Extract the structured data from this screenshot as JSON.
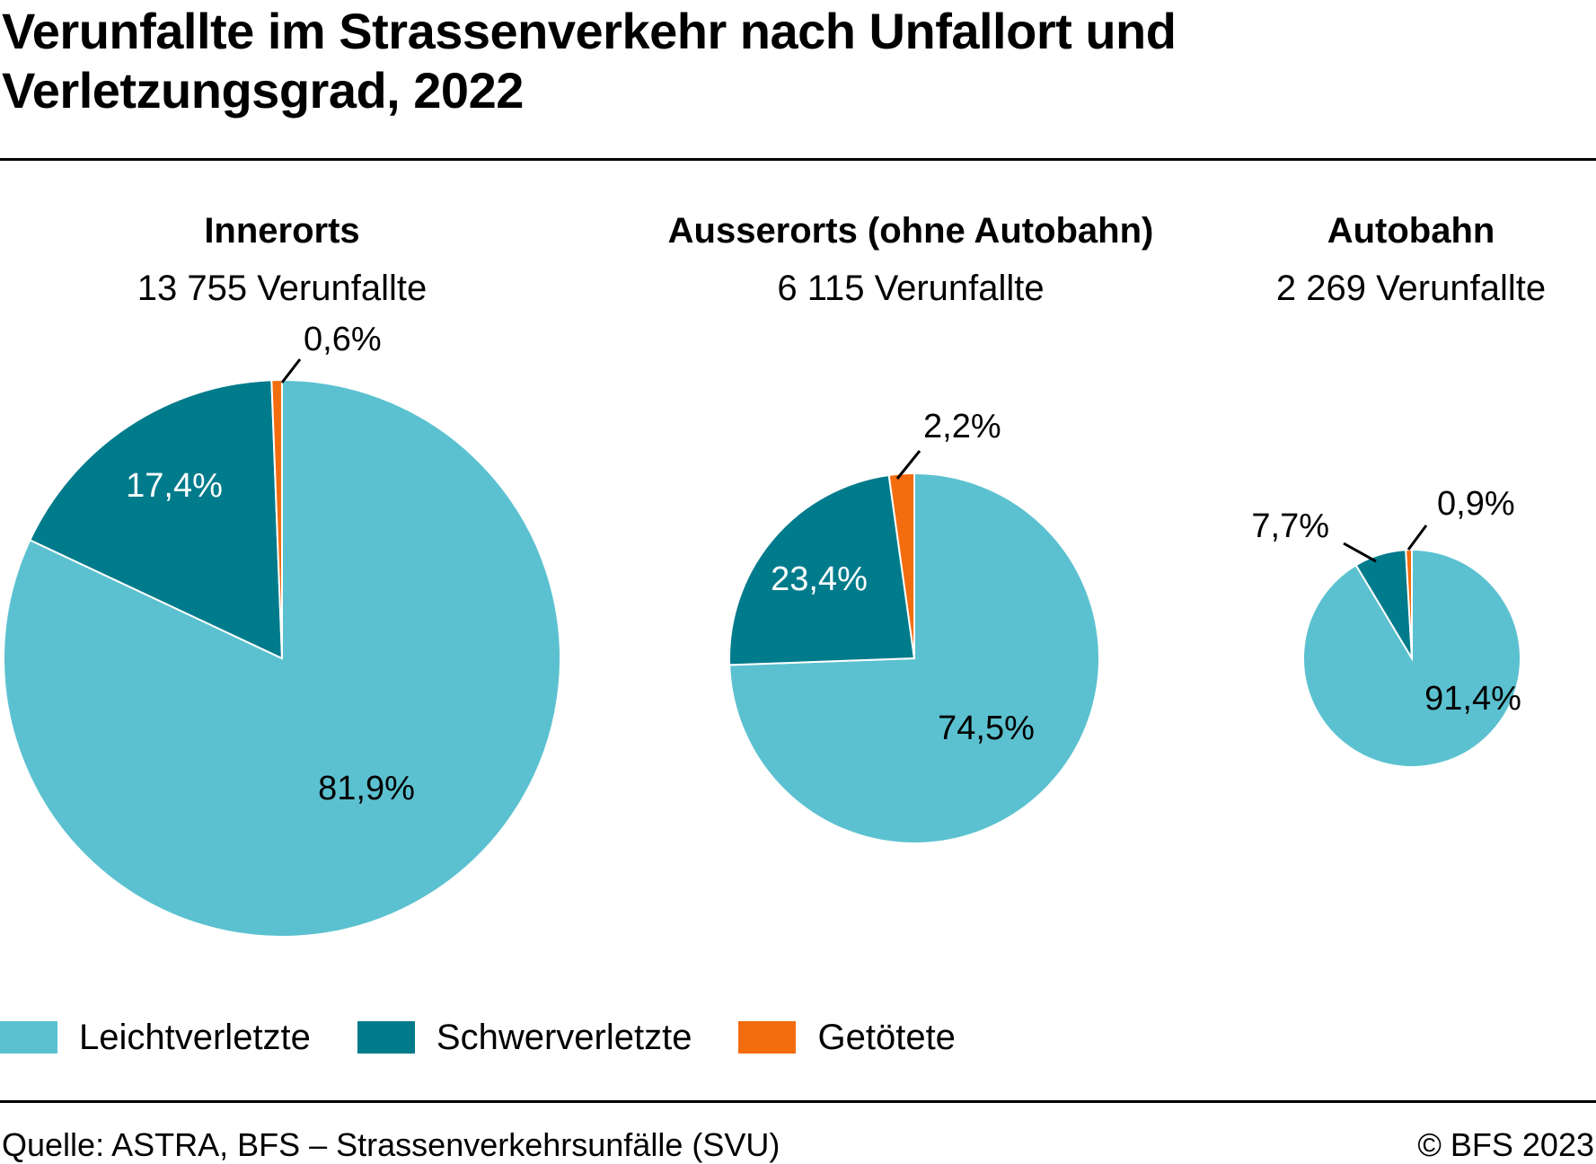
{
  "title": "Verunfallte im Strassenverkehr nach Unfallort und Verletzungsgrad, 2022",
  "colors": {
    "Leichtverletzte": "#5BC1D0",
    "Schwerverletzte": "#007B8C",
    "Getötete": "#F36C0E"
  },
  "chart_data": [
    {
      "type": "pie",
      "title": "Innerorts",
      "subtitle": "13 755 Verunfallte",
      "categories": [
        "Leichtverletzte",
        "Schwerverletzte",
        "Getötete"
      ],
      "values": [
        81.9,
        17.4,
        0.6
      ],
      "labels": [
        "81,9%",
        "17,4%",
        "0,6%"
      ]
    },
    {
      "type": "pie",
      "title": "Ausserorts (ohne Autobahn)",
      "subtitle": "6 115 Verunfallte",
      "categories": [
        "Leichtverletzte",
        "Schwerverletzte",
        "Getötete"
      ],
      "values": [
        74.5,
        23.4,
        2.2
      ],
      "labels": [
        "74,5%",
        "23,4%",
        "2,2%"
      ]
    },
    {
      "type": "pie",
      "title": "Autobahn",
      "subtitle": "2 269 Verunfallte",
      "categories": [
        "Leichtverletzte",
        "Schwerverletzte",
        "Getötete"
      ],
      "values": [
        91.4,
        7.7,
        0.9
      ],
      "labels": [
        "91,4%",
        "7,7%",
        "0,9%"
      ]
    }
  ],
  "legend": [
    "Leichtverletzte",
    "Schwerverletzte",
    "Getötete"
  ],
  "footer": {
    "source": "Quelle: ASTRA, BFS – Strassenverkehrsunfälle (SVU)",
    "copyright": "© BFS 2023"
  }
}
